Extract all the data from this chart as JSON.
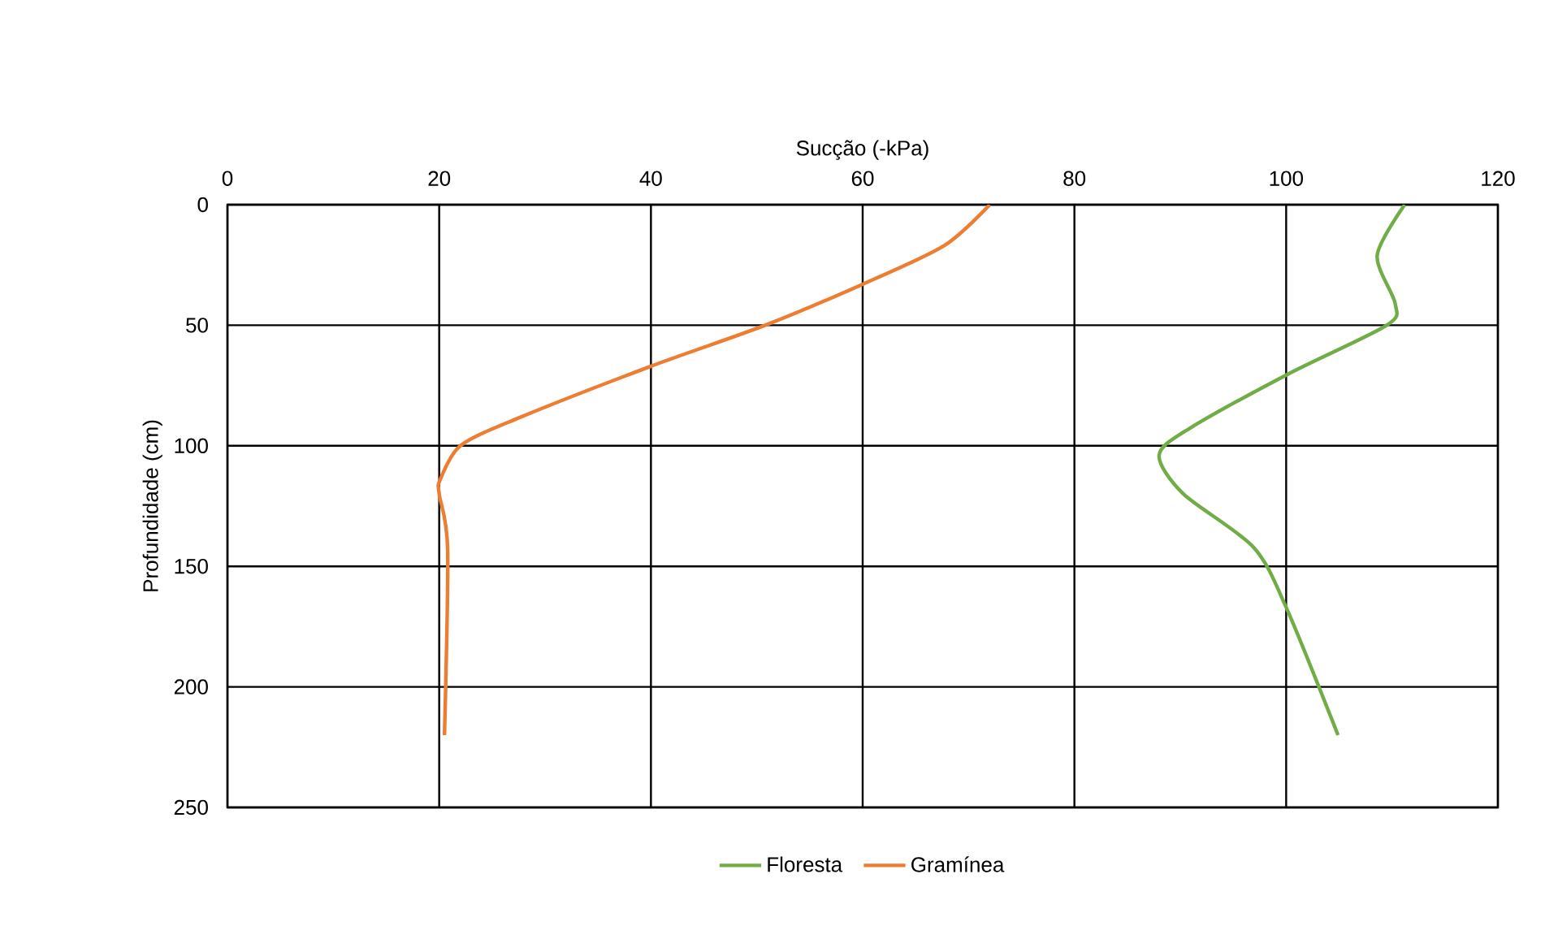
{
  "chart_data": {
    "type": "line",
    "xlabel": "Sucção (-kPa)",
    "ylabel": "Profundidade (cm)",
    "xlim": [
      0,
      120
    ],
    "xticks": [
      0,
      20,
      40,
      60,
      80,
      100,
      120
    ],
    "ylim": [
      250,
      0
    ],
    "yticks": [
      0,
      50,
      100,
      150,
      200,
      250
    ],
    "grid": true,
    "legend": "bottom",
    "marker": "none",
    "line_style": "solid",
    "series": [
      {
        "name": "Floresta",
        "color": "#70ad47",
        "x": [
          111.2,
          108.6,
          110.3,
          109.5,
          100.3,
          90.8,
          88.0,
          90.3,
          96.9,
          100,
          104.9
        ],
        "values": [
          0,
          21,
          41,
          50,
          70,
          93,
          104,
          120,
          142,
          167,
          220
        ]
      },
      {
        "name": "Gramínea",
        "color": "#ed7d31",
        "x": [
          72.0,
          67.7,
          60,
          50.8,
          40,
          27.2,
          22.0,
          20.1,
          20,
          20.8,
          20.5
        ],
        "values": [
          0,
          17,
          33,
          50,
          67,
          89,
          100,
          114,
          120,
          143,
          220
        ]
      }
    ]
  }
}
